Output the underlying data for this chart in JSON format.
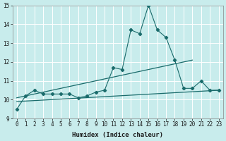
{
  "xlabel": "Humidex (Indice chaleur)",
  "background_color": "#c8ecec",
  "grid_color": "#b8dede",
  "line_color": "#1a6b6b",
  "x": [
    0,
    1,
    2,
    3,
    4,
    5,
    6,
    7,
    8,
    9,
    10,
    11,
    12,
    13,
    14,
    15,
    16,
    17,
    18,
    19,
    20,
    21,
    22,
    23
  ],
  "y_main": [
    9.5,
    10.2,
    10.5,
    10.3,
    10.3,
    10.3,
    10.3,
    10.1,
    10.2,
    10.4,
    10.5,
    11.7,
    11.6,
    13.7,
    13.5,
    15.0,
    13.7,
    13.3,
    12.1,
    10.6,
    10.6,
    11.0,
    10.5,
    10.5
  ],
  "trend1_x": [
    0,
    23
  ],
  "trend1_y": [
    9.9,
    10.5
  ],
  "trend2_x": [
    0,
    20
  ],
  "trend2_y": [
    10.1,
    12.1
  ],
  "ylim": [
    9,
    15
  ],
  "xlim": [
    -0.5,
    23.5
  ],
  "yticks": [
    9,
    10,
    11,
    12,
    13,
    14,
    15
  ],
  "xticks": [
    0,
    1,
    2,
    3,
    4,
    5,
    6,
    7,
    8,
    9,
    10,
    11,
    12,
    13,
    14,
    15,
    16,
    17,
    18,
    19,
    20,
    21,
    22,
    23
  ],
  "xlabel_fontsize": 6.5,
  "tick_fontsize": 5.5
}
